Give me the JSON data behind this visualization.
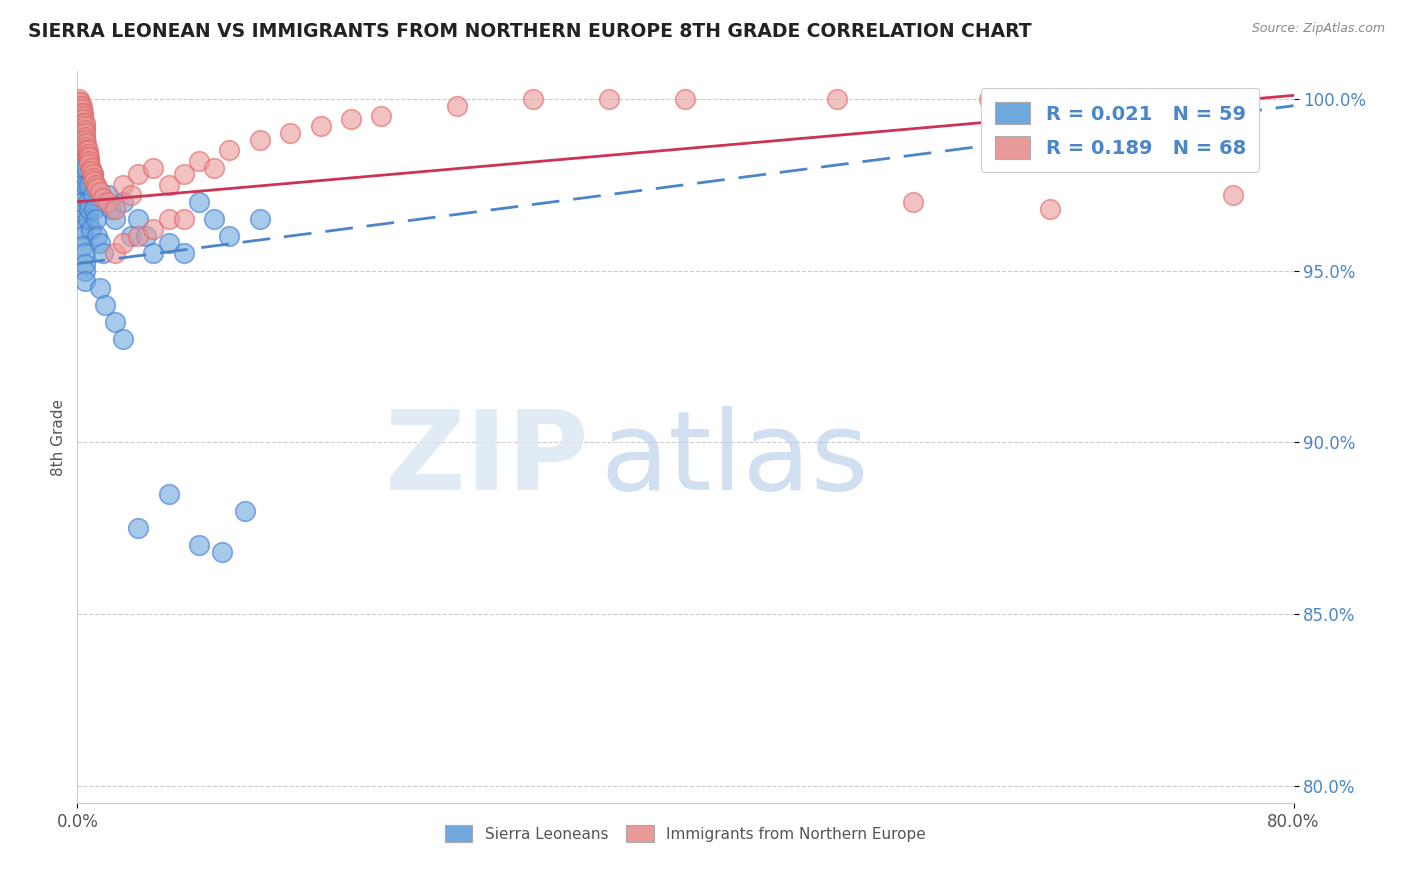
{
  "title": "SIERRA LEONEAN VS IMMIGRANTS FROM NORTHERN EUROPE 8TH GRADE CORRELATION CHART",
  "source": "Source: ZipAtlas.com",
  "ylabel": "8th Grade",
  "xlim": [
    0.0,
    0.8
  ],
  "ylim": [
    0.795,
    1.008
  ],
  "yticks": [
    0.8,
    0.85,
    0.9,
    0.95,
    1.0
  ],
  "ytick_labels": [
    "80.0%",
    "85.0%",
    "90.0%",
    "95.0%",
    "100.0%"
  ],
  "xticks": [
    0.0,
    0.8
  ],
  "xtick_labels": [
    "0.0%",
    "80.0%"
  ],
  "legend_labels": [
    "Sierra Leoneans",
    "Immigrants from Northern Europe"
  ],
  "series1_R": 0.021,
  "series1_N": 59,
  "series2_R": 0.189,
  "series2_N": 68,
  "color_blue": "#6fa8dc",
  "color_pink": "#ea9999",
  "color_blue_dark": "#3c78d8",
  "color_pink_dark": "#e06666",
  "background_color": "#ffffff",
  "trendline1_x0": 0.0,
  "trendline1_y0": 0.952,
  "trendline1_x1": 0.8,
  "trendline1_y1": 0.998,
  "trendline2_x0": 0.0,
  "trendline2_y0": 0.97,
  "trendline2_x1": 0.8,
  "trendline2_y1": 1.001,
  "series1_x": [
    0.001,
    0.001,
    0.001,
    0.002,
    0.002,
    0.002,
    0.002,
    0.003,
    0.003,
    0.003,
    0.003,
    0.003,
    0.004,
    0.004,
    0.004,
    0.004,
    0.004,
    0.005,
    0.005,
    0.005,
    0.005,
    0.006,
    0.006,
    0.006,
    0.007,
    0.007,
    0.008,
    0.008,
    0.009,
    0.01,
    0.01,
    0.011,
    0.012,
    0.013,
    0.015,
    0.017,
    0.02,
    0.022,
    0.025,
    0.03,
    0.035,
    0.04,
    0.045,
    0.05,
    0.06,
    0.07,
    0.08,
    0.09,
    0.1,
    0.12,
    0.015,
    0.018,
    0.025,
    0.03,
    0.04,
    0.06,
    0.08,
    0.095,
    0.11
  ],
  "series1_y": [
    0.998,
    0.996,
    0.993,
    0.99,
    0.988,
    0.985,
    0.982,
    0.98,
    0.977,
    0.975,
    0.973,
    0.97,
    0.968,
    0.965,
    0.962,
    0.96,
    0.957,
    0.955,
    0.952,
    0.95,
    0.947,
    0.985,
    0.98,
    0.975,
    0.97,
    0.965,
    0.975,
    0.968,
    0.962,
    0.978,
    0.972,
    0.968,
    0.965,
    0.96,
    0.958,
    0.955,
    0.972,
    0.968,
    0.965,
    0.97,
    0.96,
    0.965,
    0.96,
    0.955,
    0.958,
    0.955,
    0.97,
    0.965,
    0.96,
    0.965,
    0.945,
    0.94,
    0.935,
    0.93,
    0.875,
    0.885,
    0.87,
    0.868,
    0.88
  ],
  "series2_x": [
    0.001,
    0.001,
    0.002,
    0.002,
    0.003,
    0.003,
    0.003,
    0.004,
    0.004,
    0.004,
    0.004,
    0.005,
    0.005,
    0.005,
    0.005,
    0.005,
    0.005,
    0.006,
    0.006,
    0.006,
    0.007,
    0.007,
    0.007,
    0.008,
    0.008,
    0.008,
    0.009,
    0.009,
    0.01,
    0.01,
    0.011,
    0.012,
    0.013,
    0.015,
    0.017,
    0.02,
    0.025,
    0.03,
    0.035,
    0.04,
    0.05,
    0.06,
    0.07,
    0.08,
    0.09,
    0.1,
    0.12,
    0.14,
    0.16,
    0.18,
    0.2,
    0.25,
    0.3,
    0.35,
    0.4,
    0.5,
    0.6,
    0.7,
    0.75,
    0.025,
    0.03,
    0.04,
    0.05,
    0.06,
    0.07,
    0.55,
    0.64,
    0.76
  ],
  "series2_y": [
    1.0,
    0.999,
    0.999,
    0.998,
    0.998,
    0.997,
    0.996,
    0.996,
    0.995,
    0.994,
    0.993,
    0.993,
    0.992,
    0.991,
    0.99,
    0.989,
    0.988,
    0.987,
    0.986,
    0.985,
    0.985,
    0.984,
    0.983,
    0.983,
    0.982,
    0.981,
    0.98,
    0.979,
    0.978,
    0.977,
    0.976,
    0.975,
    0.974,
    0.973,
    0.971,
    0.97,
    0.968,
    0.975,
    0.972,
    0.978,
    0.98,
    0.975,
    0.978,
    0.982,
    0.98,
    0.985,
    0.988,
    0.99,
    0.992,
    0.994,
    0.995,
    0.998,
    1.0,
    1.0,
    1.0,
    1.0,
    1.0,
    1.0,
    1.0,
    0.955,
    0.958,
    0.96,
    0.962,
    0.965,
    0.965,
    0.97,
    0.968,
    0.972
  ]
}
